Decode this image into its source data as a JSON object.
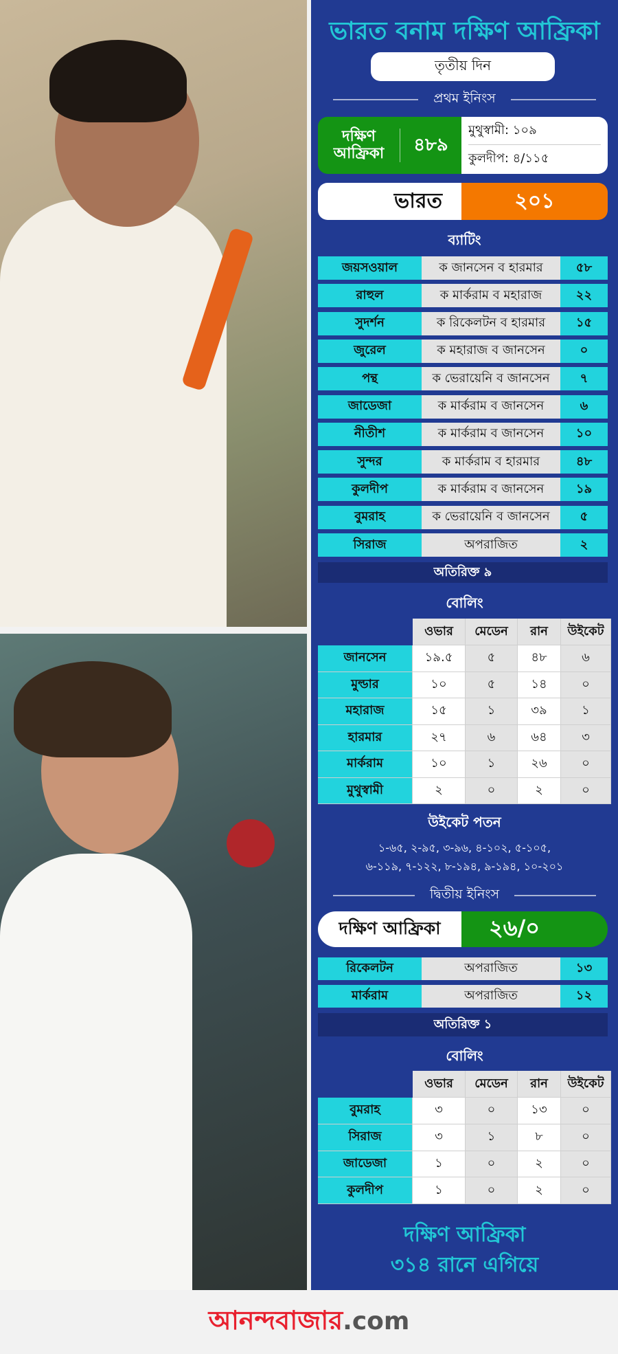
{
  "header": {
    "title": "ভারত বনাম দক্ষিণ আফ্রিকা",
    "day": "তৃতীয় দিন"
  },
  "first_innings": {
    "label": "প্রথম ইনিংস",
    "sa": {
      "team": "দক্ষিণ আফ্রিকা",
      "score": "৪৮৯",
      "top_bat": "মুথুস্বামী: ১০৯",
      "top_bowl": "কুলদীপ: ৪/১১৫"
    },
    "india": {
      "team": "ভারত",
      "score": "২০১"
    },
    "batting_label": "ব্যাটিং",
    "batting": [
      {
        "name": "জয়সওয়াল",
        "dismissal": "ক জানসেন ব হারমার",
        "runs": "৫৮"
      },
      {
        "name": "রাহুল",
        "dismissal": "ক মার্করাম ব মহারাজ",
        "runs": "২২"
      },
      {
        "name": "সুদর্শন",
        "dismissal": "ক রিকেলটন ব হারমার",
        "runs": "১৫"
      },
      {
        "name": "জুরেল",
        "dismissal": "ক মহারাজ ব জানসেন",
        "runs": "০"
      },
      {
        "name": "পন্থ",
        "dismissal": "ক ভেরায়েনি ব জানসেন",
        "runs": "৭"
      },
      {
        "name": "জাডেজা",
        "dismissal": "ক মার্করাম ব জানসেন",
        "runs": "৬"
      },
      {
        "name": "নীতীশ",
        "dismissal": "ক মার্করাম ব জানসেন",
        "runs": "১০"
      },
      {
        "name": "সুন্দর",
        "dismissal": "ক মার্করাম ব হারমার",
        "runs": "৪৮"
      },
      {
        "name": "কুলদীপ",
        "dismissal": "ক মার্করাম ব জানসেন",
        "runs": "১৯"
      },
      {
        "name": "বুমরাহ",
        "dismissal": "ক ভেরায়েনি ব জানসেন",
        "runs": "৫"
      },
      {
        "name": "সিরাজ",
        "dismissal": "অপরাজিত",
        "runs": "২"
      }
    ],
    "extras": "অতিরিক্ত ৯",
    "bowling_label": "বোলিং",
    "bowling_headers": [
      "ওভার",
      "মেডেন",
      "রান",
      "উইকেট"
    ],
    "bowling": [
      {
        "name": "জানসেন",
        "overs": "১৯.৫",
        "maidens": "৫",
        "runs": "৪৮",
        "wickets": "৬"
      },
      {
        "name": "মুল্ডার",
        "overs": "১০",
        "maidens": "৫",
        "runs": "১৪",
        "wickets": "০"
      },
      {
        "name": "মহারাজ",
        "overs": "১৫",
        "maidens": "১",
        "runs": "৩৯",
        "wickets": "১"
      },
      {
        "name": "হারমার",
        "overs": "২৭",
        "maidens": "৬",
        "runs": "৬৪",
        "wickets": "৩"
      },
      {
        "name": "মার্করাম",
        "overs": "১০",
        "maidens": "১",
        "runs": "২৬",
        "wickets": "০"
      },
      {
        "name": "মুথুস্বামী",
        "overs": "২",
        "maidens": "০",
        "runs": "২",
        "wickets": "০"
      }
    ],
    "fow_label": "উইকেট পতন",
    "fow_line1": "১-৬৫, ২-৯৫, ৩-৯৬, ৪-১০২, ৫-১০৫,",
    "fow_line2": "৬-১১৯, ৭-১২২, ৮-১৯৪, ৯-১৯৪, ১০-২০১"
  },
  "second_innings": {
    "label": "দ্বিতীয় ইনিংস",
    "team": "দক্ষিণ আফ্রিকা",
    "score": "২৬/০",
    "batting": [
      {
        "name": "রিকেলটন",
        "dismissal": "অপরাজিত",
        "runs": "১৩"
      },
      {
        "name": "মার্করাম",
        "dismissal": "অপরাজিত",
        "runs": "১২"
      }
    ],
    "extras": "অতিরিক্ত ১",
    "bowling_label": "বোলিং",
    "bowling_headers": [
      "ওভার",
      "মেডেন",
      "রান",
      "উইকেট"
    ],
    "bowling": [
      {
        "name": "বুমরাহ",
        "overs": "৩",
        "maidens": "০",
        "runs": "১৩",
        "wickets": "০"
      },
      {
        "name": "সিরাজ",
        "overs": "৩",
        "maidens": "১",
        "runs": "৮",
        "wickets": "০"
      },
      {
        "name": "জাডেজা",
        "overs": "১",
        "maidens": "০",
        "runs": "২",
        "wickets": "০"
      },
      {
        "name": "কুলদীপ",
        "overs": "১",
        "maidens": "০",
        "runs": "২",
        "wickets": "০"
      }
    ]
  },
  "summary": {
    "line1": "দক্ষিণ আফ্রিকা",
    "line2": "৩১৪ রানে এগিয়ে"
  },
  "footer": {
    "logo_main": "আনন্দবাজার",
    "logo_suffix": ".com"
  },
  "colors": {
    "panel": "#213a92",
    "cyan": "#22d3dd",
    "green": "#149414",
    "orange": "#f47800",
    "logo_red": "#e8202e"
  }
}
